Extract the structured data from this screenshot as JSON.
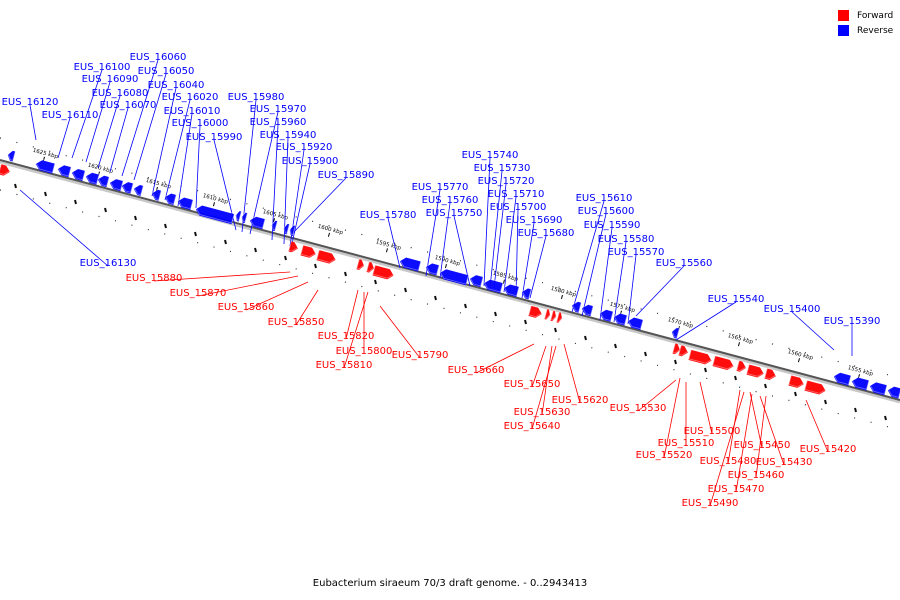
{
  "colors": {
    "forward": "#ff0000",
    "reverse": "#0000ff",
    "axis": "#888888"
  },
  "legend": [
    {
      "label": "Forward",
      "color": "#ff0000"
    },
    {
      "label": "Reverse",
      "color": "#0000ff"
    }
  ],
  "caption": "Eubacterium siraeum 70/3 draft genome. - 0..2943413",
  "ticks": [
    "1625 kbp",
    "1620 kbp",
    "1615 kbp",
    "1610 kbp",
    "1605 kbp",
    "1600 kbp",
    "1595 kbp",
    "1590 kbp",
    "1585 kbp",
    "1580 kbp",
    "1575 kbp",
    "1570 kbp",
    "1565 kbp",
    "1560 kbp",
    "1555 kbp"
  ],
  "reverse_genes": [
    "EUS_16130",
    "EUS_16120",
    "EUS_16110",
    "EUS_16100",
    "EUS_16090",
    "EUS_16080",
    "EUS_16070",
    "EUS_16060",
    "EUS_16050",
    "EUS_16040",
    "EUS_16020",
    "EUS_16010",
    "EUS_16000",
    "EUS_15990",
    "EUS_15980",
    "EUS_15970",
    "EUS_15960",
    "EUS_15940",
    "EUS_15920",
    "EUS_15900",
    "EUS_15890",
    "EUS_15780",
    "EUS_15770",
    "EUS_15760",
    "EUS_15750",
    "EUS_15740",
    "EUS_15730",
    "EUS_15720",
    "EUS_15710",
    "EUS_15700",
    "EUS_15690",
    "EUS_15680",
    "EUS_15610",
    "EUS_15600",
    "EUS_15590",
    "EUS_15580",
    "EUS_15570",
    "EUS_15560",
    "EUS_15540",
    "EUS_15400",
    "EUS_15390"
  ],
  "forward_genes": [
    "EUS_15880",
    "EUS_15870",
    "EUS_15860",
    "EUS_15850",
    "EUS_15820",
    "EUS_15800",
    "EUS_15810",
    "EUS_15790",
    "EUS_15660",
    "EUS_15650",
    "EUS_15630",
    "EUS_15640",
    "EUS_15620",
    "EUS_15530",
    "EUS_15500",
    "EUS_15510",
    "EUS_15520",
    "EUS_15480",
    "EUS_15450",
    "EUS_15430",
    "EUS_15420",
    "EUS_15460",
    "EUS_15470",
    "EUS_15490"
  ]
}
